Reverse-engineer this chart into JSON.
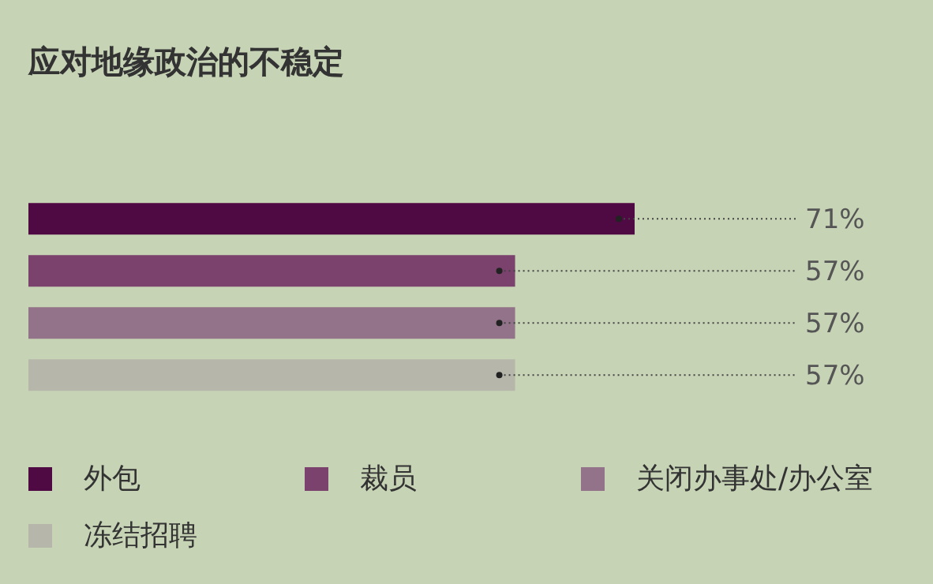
{
  "chart_data": {
    "type": "bar",
    "orientation": "horizontal",
    "stacked": true,
    "title": "应对地缘政治的不稳定",
    "categories": [
      null,
      null,
      null,
      null
    ],
    "legend": "bottom",
    "series": [
      {
        "name": "外包",
        "color": "#4f0a44",
        "values": [
          71,
          null,
          null,
          null
        ],
        "value_labels": [
          "71%",
          null,
          null,
          null
        ]
      },
      {
        "name": "裁员",
        "color": "#7b426e",
        "values": [
          null,
          57,
          null,
          null
        ],
        "value_labels": [
          null,
          "57%",
          null,
          null
        ]
      },
      {
        "name": "关闭办事处/办公室",
        "color": "#937389",
        "values": [
          null,
          null,
          57,
          null
        ],
        "value_labels": [
          null,
          null,
          "57%",
          null
        ]
      },
      {
        "name": "冻结招聘",
        "color": "#b7b6ab",
        "values": [
          null,
          null,
          null,
          57
        ],
        "value_labels": [
          null,
          null,
          null,
          "57%"
        ]
      }
    ]
  }
}
